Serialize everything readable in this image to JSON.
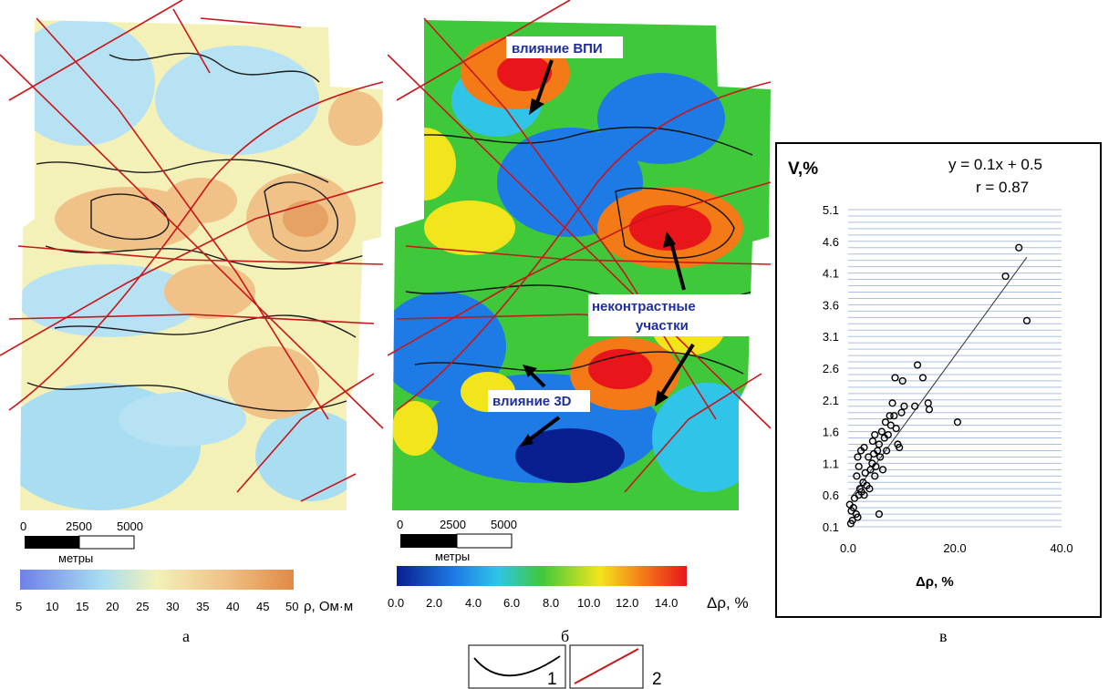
{
  "map_a": {
    "scale_labels": [
      "0",
      "2500",
      "5000"
    ],
    "scale_unit": "метры",
    "colorbar_ticks": [
      "5",
      "10",
      "15",
      "20",
      "25",
      "30",
      "35",
      "40",
      "45",
      "50"
    ],
    "colorbar_label": "ρ, Ом·м",
    "colors": [
      "#6f80e8",
      "#a8ddf2",
      "#f3f1b8",
      "#f0c287",
      "#e08a45"
    ],
    "panel_letter": "а"
  },
  "map_b": {
    "callouts": {
      "vpi": "влияние ВПИ",
      "noncontrast_line1": "неконтрастные",
      "noncontrast_line2": "участки",
      "d3": "влияние 3D"
    },
    "scale_labels": [
      "0",
      "2500",
      "5000"
    ],
    "scale_unit": "метры",
    "colorbar_ticks": [
      "0.0",
      "2.0",
      "4.0",
      "6.0",
      "8.0",
      "10.0",
      "12.0",
      "14.0"
    ],
    "colorbar_label": "Δρ, %",
    "colors": [
      "#0a1f8f",
      "#1e7be6",
      "#30c4e8",
      "#3fc93a",
      "#f2e51c",
      "#f47a18",
      "#e8161a"
    ],
    "panel_letter": "б"
  },
  "chart_data": {
    "type": "scatter",
    "ylabel": "V,%",
    "xlabel": "Δρ, %",
    "equation": "y = 0.1x + 0.5",
    "r_text": "r = 0.87",
    "panel_letter": "в",
    "xlim": [
      0,
      40
    ],
    "ylim": [
      0.1,
      5.1
    ],
    "x_ticks": [
      "0.0",
      "20.0",
      "40.0"
    ],
    "y_ticks": [
      "0.1",
      "0.6",
      "1.1",
      "1.6",
      "2.1",
      "2.6",
      "3.1",
      "3.6",
      "4.1",
      "4.6",
      "5.1"
    ],
    "grid": true,
    "trendline": {
      "x": [
        0.5,
        33.5
      ],
      "y": [
        0.55,
        4.35
      ]
    },
    "points": [
      {
        "x": 0.5,
        "y": 0.15
      },
      {
        "x": 0.8,
        "y": 0.2
      },
      {
        "x": 0.3,
        "y": 0.45
      },
      {
        "x": 0.6,
        "y": 0.35
      },
      {
        "x": 1.0,
        "y": 0.4
      },
      {
        "x": 1.2,
        "y": 0.55
      },
      {
        "x": 1.5,
        "y": 0.3
      },
      {
        "x": 1.8,
        "y": 0.25
      },
      {
        "x": 2.0,
        "y": 0.6
      },
      {
        "x": 2.2,
        "y": 0.7
      },
      {
        "x": 1.6,
        "y": 0.9
      },
      {
        "x": 2.5,
        "y": 0.65
      },
      {
        "x": 2.8,
        "y": 0.8
      },
      {
        "x": 3.0,
        "y": 0.6
      },
      {
        "x": 3.2,
        "y": 0.95
      },
      {
        "x": 2.0,
        "y": 1.05
      },
      {
        "x": 1.8,
        "y": 1.2
      },
      {
        "x": 2.4,
        "y": 1.3
      },
      {
        "x": 3.5,
        "y": 0.75
      },
      {
        "x": 4.0,
        "y": 0.7
      },
      {
        "x": 4.2,
        "y": 1.0
      },
      {
        "x": 4.5,
        "y": 1.1
      },
      {
        "x": 3.8,
        "y": 1.2
      },
      {
        "x": 4.8,
        "y": 1.25
      },
      {
        "x": 5.0,
        "y": 0.9
      },
      {
        "x": 5.2,
        "y": 1.05
      },
      {
        "x": 5.5,
        "y": 1.3
      },
      {
        "x": 4.6,
        "y": 1.45
      },
      {
        "x": 5.0,
        "y": 1.55
      },
      {
        "x": 5.8,
        "y": 1.4
      },
      {
        "x": 6.0,
        "y": 1.2
      },
      {
        "x": 6.3,
        "y": 1.6
      },
      {
        "x": 6.8,
        "y": 1.5
      },
      {
        "x": 7.0,
        "y": 1.75
      },
      {
        "x": 7.5,
        "y": 1.55
      },
      {
        "x": 7.8,
        "y": 1.85
      },
      {
        "x": 8.0,
        "y": 1.7
      },
      {
        "x": 8.3,
        "y": 2.05
      },
      {
        "x": 8.6,
        "y": 1.85
      },
      {
        "x": 9.0,
        "y": 1.65
      },
      {
        "x": 9.3,
        "y": 1.4
      },
      {
        "x": 9.6,
        "y": 1.35
      },
      {
        "x": 10.0,
        "y": 1.9
      },
      {
        "x": 10.5,
        "y": 2.0
      },
      {
        "x": 8.8,
        "y": 2.45
      },
      {
        "x": 10.2,
        "y": 2.4
      },
      {
        "x": 12.5,
        "y": 2.0
      },
      {
        "x": 13.0,
        "y": 2.65
      },
      {
        "x": 14.0,
        "y": 2.45
      },
      {
        "x": 15.0,
        "y": 2.05
      },
      {
        "x": 15.2,
        "y": 1.95
      },
      {
        "x": 20.5,
        "y": 1.75
      },
      {
        "x": 5.8,
        "y": 0.3
      },
      {
        "x": 3.0,
        "y": 1.35
      },
      {
        "x": 6.5,
        "y": 1.0
      },
      {
        "x": 7.2,
        "y": 1.3
      },
      {
        "x": 29.5,
        "y": 4.05
      },
      {
        "x": 32.0,
        "y": 4.5
      },
      {
        "x": 33.5,
        "y": 3.35
      }
    ]
  },
  "legend": {
    "item1_label": "1",
    "item2_label": "2"
  }
}
